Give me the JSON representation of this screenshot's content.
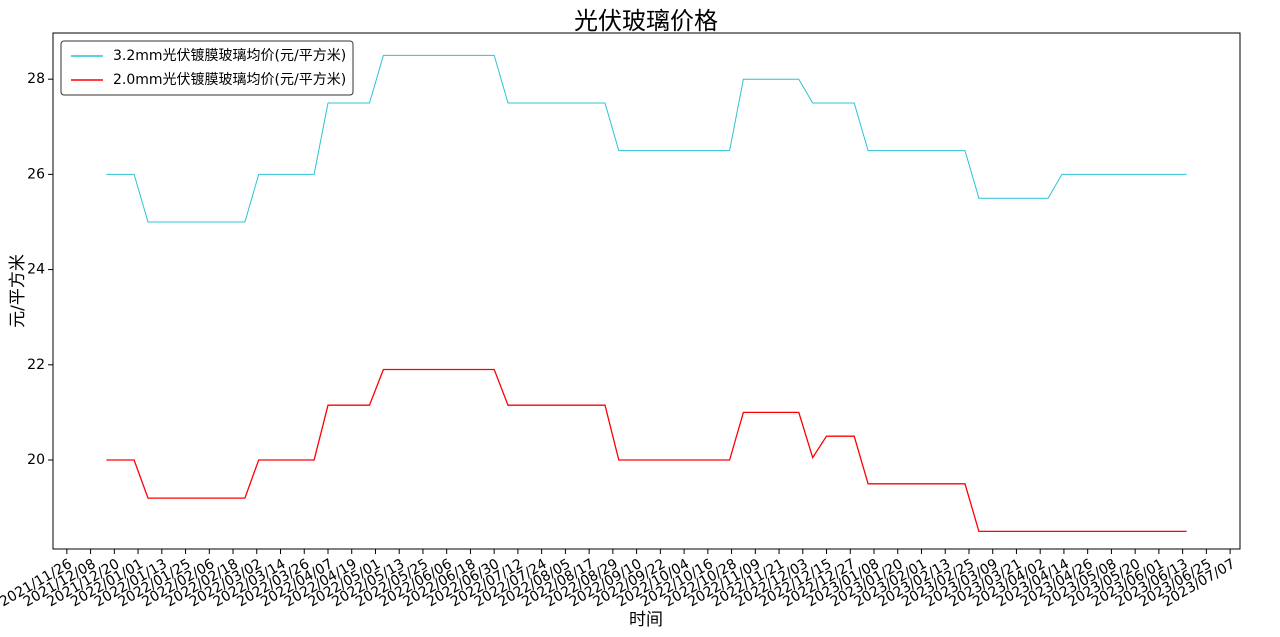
{
  "chart_data": {
    "type": "line",
    "title": "光伏玻璃价格",
    "xlabel": "时间",
    "ylabel": "元/平方米",
    "x": [
      "2021/12/16",
      "2021/12/30",
      "2022/01/06",
      "2022/02/24",
      "2022/03/03",
      "2022/03/31",
      "2022/04/07",
      "2022/04/28",
      "2022/05/05",
      "2022/06/30",
      "2022/07/07",
      "2022/08/25",
      "2022/09/01",
      "2022/10/27",
      "2022/11/03",
      "2022/12/01",
      "2022/12/08",
      "2022/12/15",
      "2022/12/29",
      "2023/01/05",
      "2023/02/23",
      "2023/03/02",
      "2023/04/06",
      "2023/04/13",
      "2023/06/15"
    ],
    "series": [
      {
        "name": "3.2mm光伏镀膜玻璃均价(元/平方米)",
        "color": "#2bc4d2",
        "values": [
          26,
          26,
          25,
          25,
          26,
          26,
          27.5,
          27.5,
          28.5,
          28.5,
          27.5,
          27.5,
          26.5,
          26.5,
          28,
          28,
          27.5,
          27.5,
          27.5,
          26.5,
          26.5,
          25.5,
          25.5,
          26,
          26
        ]
      },
      {
        "name": "2.0mm光伏镀膜玻璃均价(元/平方米)",
        "color": "#ff0000",
        "values": [
          20,
          20,
          19.2,
          19.2,
          20,
          20,
          21.15,
          21.15,
          21.9,
          21.9,
          21.15,
          21.15,
          20,
          20,
          21,
          21,
          20.05,
          20.5,
          20.5,
          19.5,
          19.5,
          18.5,
          18.5,
          18.5,
          18.5
        ]
      }
    ],
    "xlim": [
      "2021/11/19",
      "2023/07/12"
    ],
    "xticks": [
      "2021/11/26",
      "2021/12/08",
      "2021/12/20",
      "2022/01/01",
      "2022/01/13",
      "2022/01/25",
      "2022/02/06",
      "2022/02/18",
      "2022/03/02",
      "2022/03/14",
      "2022/03/26",
      "2022/04/07",
      "2022/04/19",
      "2022/05/01",
      "2022/05/13",
      "2022/05/25",
      "2022/06/06",
      "2022/06/18",
      "2022/06/30",
      "2022/07/12",
      "2022/07/24",
      "2022/08/05",
      "2022/08/17",
      "2022/08/29",
      "2022/09/10",
      "2022/09/22",
      "2022/10/04",
      "2022/10/16",
      "2022/10/28",
      "2022/11/09",
      "2022/11/21",
      "2022/12/03",
      "2022/12/15",
      "2022/12/27",
      "2023/01/08",
      "2023/01/20",
      "2023/02/01",
      "2023/02/13",
      "2023/02/25",
      "2023/03/09",
      "2023/03/21",
      "2023/04/02",
      "2023/04/14",
      "2023/04/26",
      "2023/05/08",
      "2023/05/20",
      "2023/06/01",
      "2023/06/13",
      "2023/06/25",
      "2023/07/07"
    ],
    "ylim": [
      18.13,
      28.97
    ],
    "yticks": [
      20,
      22,
      24,
      26,
      28
    ],
    "legend": "upper left",
    "grid": false
  }
}
